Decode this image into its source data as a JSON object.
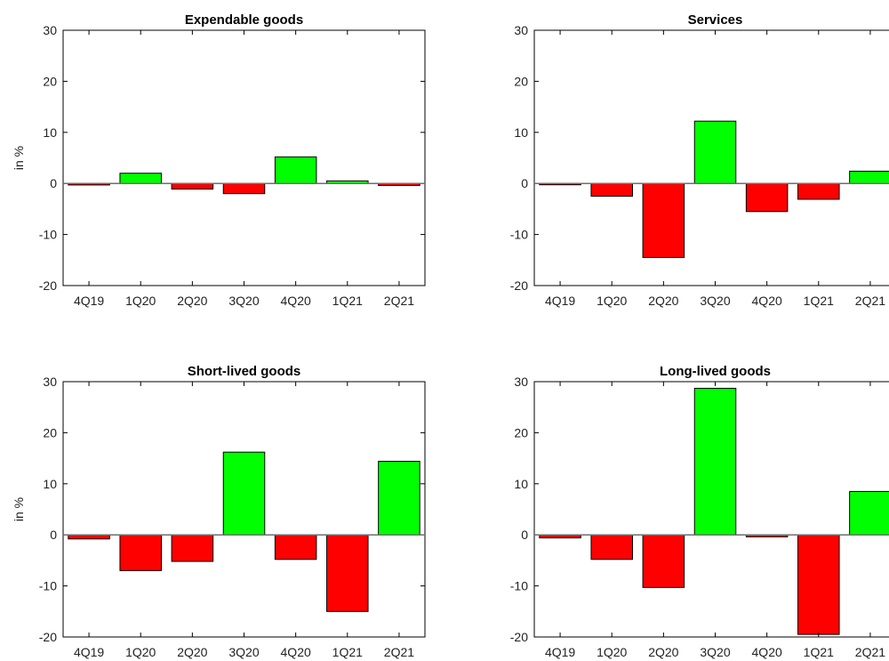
{
  "chart_data": [
    {
      "type": "bar",
      "title": "Expendable goods",
      "ylabel": "in %",
      "ylim": [
        -20,
        30
      ],
      "yticks": [
        -20,
        -10,
        0,
        10,
        20,
        30
      ],
      "categories": [
        "4Q19",
        "1Q20",
        "2Q20",
        "3Q20",
        "4Q20",
        "1Q21",
        "2Q21"
      ],
      "values": [
        -0.3,
        2.0,
        -1.1,
        -2.0,
        5.2,
        0.5,
        -0.4
      ],
      "colors": {
        "positive": "#00ff00",
        "negative": "#ff0000"
      }
    },
    {
      "type": "bar",
      "title": "Services",
      "ylabel": "",
      "ylim": [
        -20,
        30
      ],
      "yticks": [
        -20,
        -10,
        0,
        10,
        20,
        30
      ],
      "categories": [
        "4Q19",
        "1Q20",
        "2Q20",
        "3Q20",
        "4Q20",
        "1Q21",
        "2Q21"
      ],
      "values": [
        -0.2,
        -2.5,
        -14.5,
        12.2,
        -5.5,
        -3.1,
        2.4
      ],
      "colors": {
        "positive": "#00ff00",
        "negative": "#ff0000"
      }
    },
    {
      "type": "bar",
      "title": "Short-lived goods",
      "ylabel": "in %",
      "ylim": [
        -20,
        30
      ],
      "yticks": [
        -20,
        -10,
        0,
        10,
        20,
        30
      ],
      "categories": [
        "4Q19",
        "1Q20",
        "2Q20",
        "3Q20",
        "4Q20",
        "1Q21",
        "2Q21"
      ],
      "values": [
        -0.8,
        -7.0,
        -5.2,
        16.2,
        -4.8,
        -15.0,
        14.4
      ],
      "colors": {
        "positive": "#00ff00",
        "negative": "#ff0000"
      }
    },
    {
      "type": "bar",
      "title": "Long-lived goods",
      "ylabel": "",
      "ylim": [
        -20,
        30
      ],
      "yticks": [
        -20,
        -10,
        0,
        10,
        20,
        30
      ],
      "categories": [
        "4Q19",
        "1Q20",
        "2Q20",
        "3Q20",
        "4Q20",
        "1Q21",
        "2Q21"
      ],
      "values": [
        -0.6,
        -4.8,
        -10.3,
        28.7,
        -0.4,
        -19.5,
        8.5
      ],
      "colors": {
        "positive": "#00ff00",
        "negative": "#ff0000"
      }
    }
  ]
}
